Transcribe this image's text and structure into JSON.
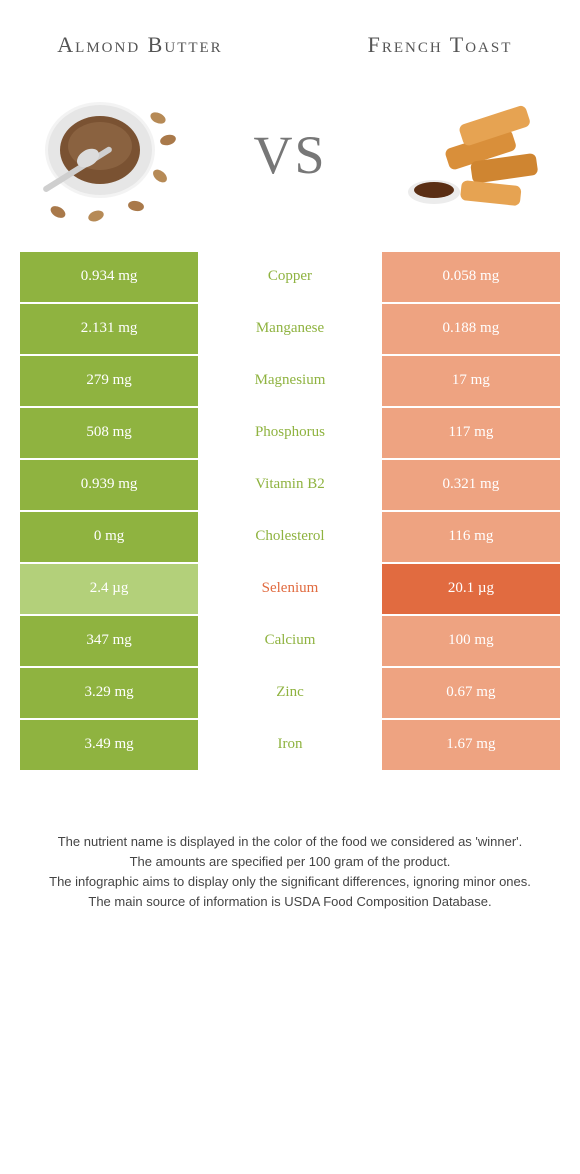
{
  "left_title": "Almond Butter",
  "right_title": "French Toast",
  "vs_text": "VS",
  "colors": {
    "left": "#8fb340",
    "right": "#e16b40",
    "left_dim": "#b3d07a",
    "right_dim": "#eea381",
    "mid_bg": "#ffffff"
  },
  "rows": [
    {
      "label": "Copper",
      "left": "0.934 mg",
      "right": "0.058 mg",
      "winner": "left"
    },
    {
      "label": "Manganese",
      "left": "2.131 mg",
      "right": "0.188 mg",
      "winner": "left"
    },
    {
      "label": "Magnesium",
      "left": "279 mg",
      "right": "17 mg",
      "winner": "left"
    },
    {
      "label": "Phosphorus",
      "left": "508 mg",
      "right": "117 mg",
      "winner": "left"
    },
    {
      "label": "Vitamin B2",
      "left": "0.939 mg",
      "right": "0.321 mg",
      "winner": "left"
    },
    {
      "label": "Cholesterol",
      "left": "0 mg",
      "right": "116 mg",
      "winner": "left"
    },
    {
      "label": "Selenium",
      "left": "2.4 µg",
      "right": "20.1 µg",
      "winner": "right"
    },
    {
      "label": "Calcium",
      "left": "347 mg",
      "right": "100 mg",
      "winner": "left"
    },
    {
      "label": "Zinc",
      "left": "3.29 mg",
      "right": "0.67 mg",
      "winner": "left"
    },
    {
      "label": "Iron",
      "left": "3.49 mg",
      "right": "1.67 mg",
      "winner": "left"
    }
  ],
  "footnotes": [
    "The nutrient name is displayed in the color of the food we considered as 'winner'.",
    "The amounts are specified per 100 gram of the product.",
    "The infographic aims to display only the significant differences, ignoring minor ones.",
    "The main source of information is USDA Food Composition Database."
  ]
}
